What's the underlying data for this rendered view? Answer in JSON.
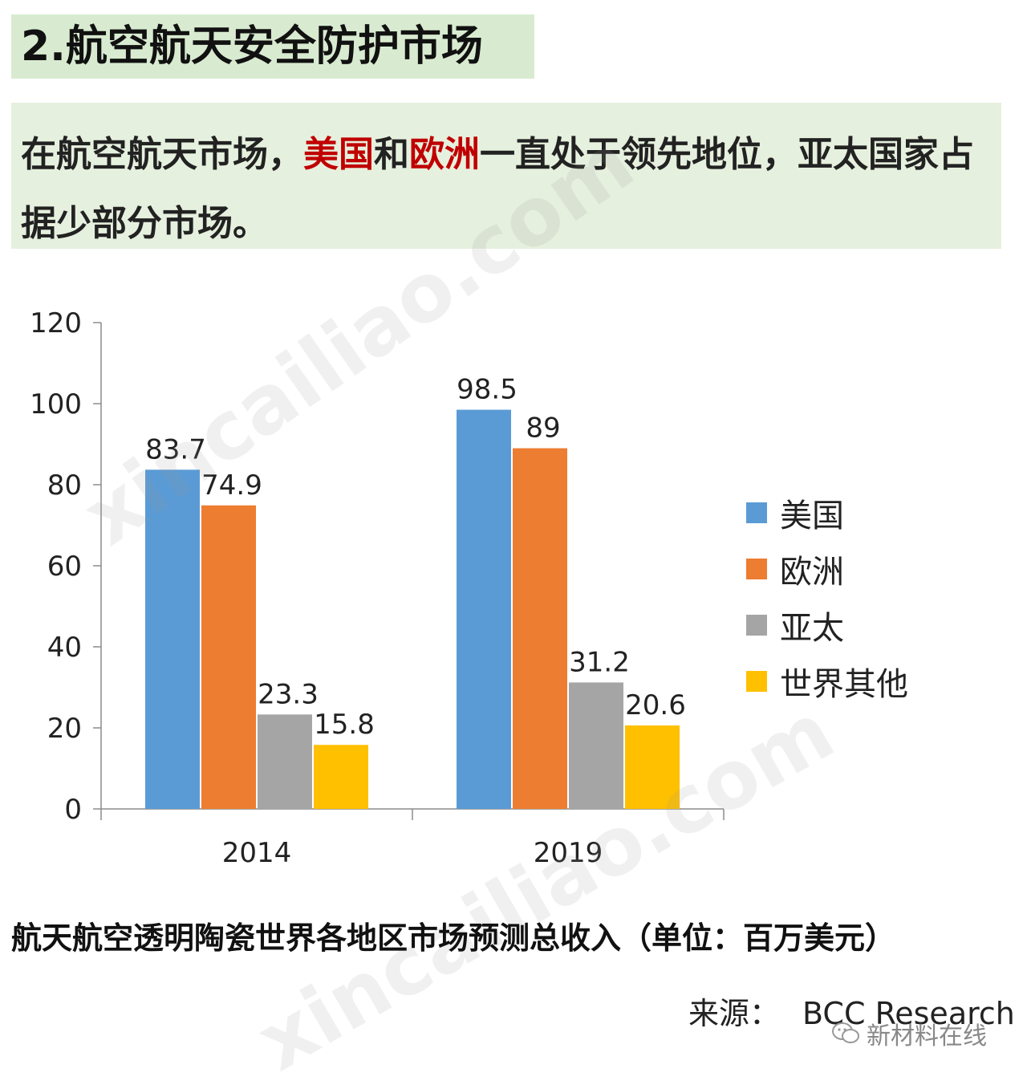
{
  "section_title": "2.航空航天安全防护市场",
  "summary": {
    "part1": "在航空航天市场，",
    "highlight1": "美国",
    "part2": "和",
    "highlight2": "欧洲",
    "part3": "一直处于领先地位，亚太国家占据少部分市场。"
  },
  "chart_data": {
    "type": "bar",
    "categories": [
      "2014",
      "2019"
    ],
    "series": [
      {
        "name": "美国",
        "values": [
          83.7,
          98.5
        ],
        "color": "#5b9bd5"
      },
      {
        "name": "欧洲",
        "values": [
          74.9,
          89
        ],
        "color": "#ed7d31"
      },
      {
        "name": "亚太",
        "values": [
          23.3,
          31.2
        ],
        "color": "#a5a5a5"
      },
      {
        "name": "世界其他",
        "values": [
          15.8,
          20.6
        ],
        "color": "#ffc000"
      }
    ],
    "data_labels": [
      [
        "83.7",
        "98.5"
      ],
      [
        "74.9",
        "89"
      ],
      [
        "23.3",
        "31.2"
      ],
      [
        "15.8",
        "20.6"
      ]
    ],
    "ylim": [
      0,
      120
    ],
    "yticks": [
      "0",
      "20",
      "40",
      "60",
      "80",
      "100",
      "120"
    ],
    "legend_position": "right",
    "grid": false
  },
  "caption": "航天航空透明陶瓷世界各地区市场预测总收入（单位：百万美元）",
  "source": {
    "label": "来源：",
    "value": "BCC Research"
  },
  "account_name": "新材料在线",
  "watermark": "xincailiao.com"
}
